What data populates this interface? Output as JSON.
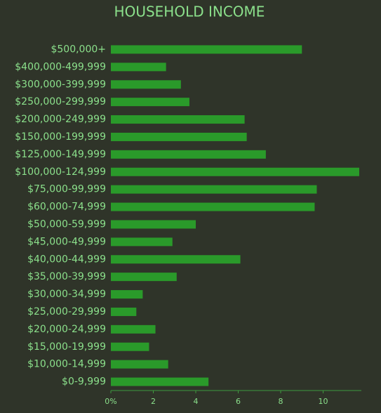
{
  "chart_data": {
    "type": "bar",
    "orientation": "horizontal",
    "title": "HOUSEHOLD INCOME",
    "categories": [
      "$500,000+",
      "$400,000-499,999",
      "$300,000-399,999",
      "$250,000-299,999",
      "$200,000-249,999",
      "$150,000-199,999",
      "$125,000-149,999",
      "$100,000-124,999",
      "$75,000-99,999",
      "$60,000-74,999",
      "$50,000-59,999",
      "$45,000-49,999",
      "$40,000-44,999",
      "$35,000-39,999",
      "$30,000-34,999",
      "$25,000-29,999",
      "$20,000-24,999",
      "$15,000-19,999",
      "$10,000-14,999",
      "$0-9,999"
    ],
    "values": [
      9.0,
      2.6,
      3.3,
      3.7,
      6.3,
      6.4,
      7.3,
      11.7,
      9.7,
      9.6,
      4.0,
      2.9,
      6.1,
      3.1,
      1.5,
      1.2,
      2.1,
      1.8,
      2.7,
      4.6
    ],
    "color": "#2a9a2a",
    "xlim": [
      0,
      11.8
    ],
    "xticks": [
      {
        "value": 0,
        "label": "0%"
      },
      2,
      4,
      6,
      8,
      10
    ]
  }
}
